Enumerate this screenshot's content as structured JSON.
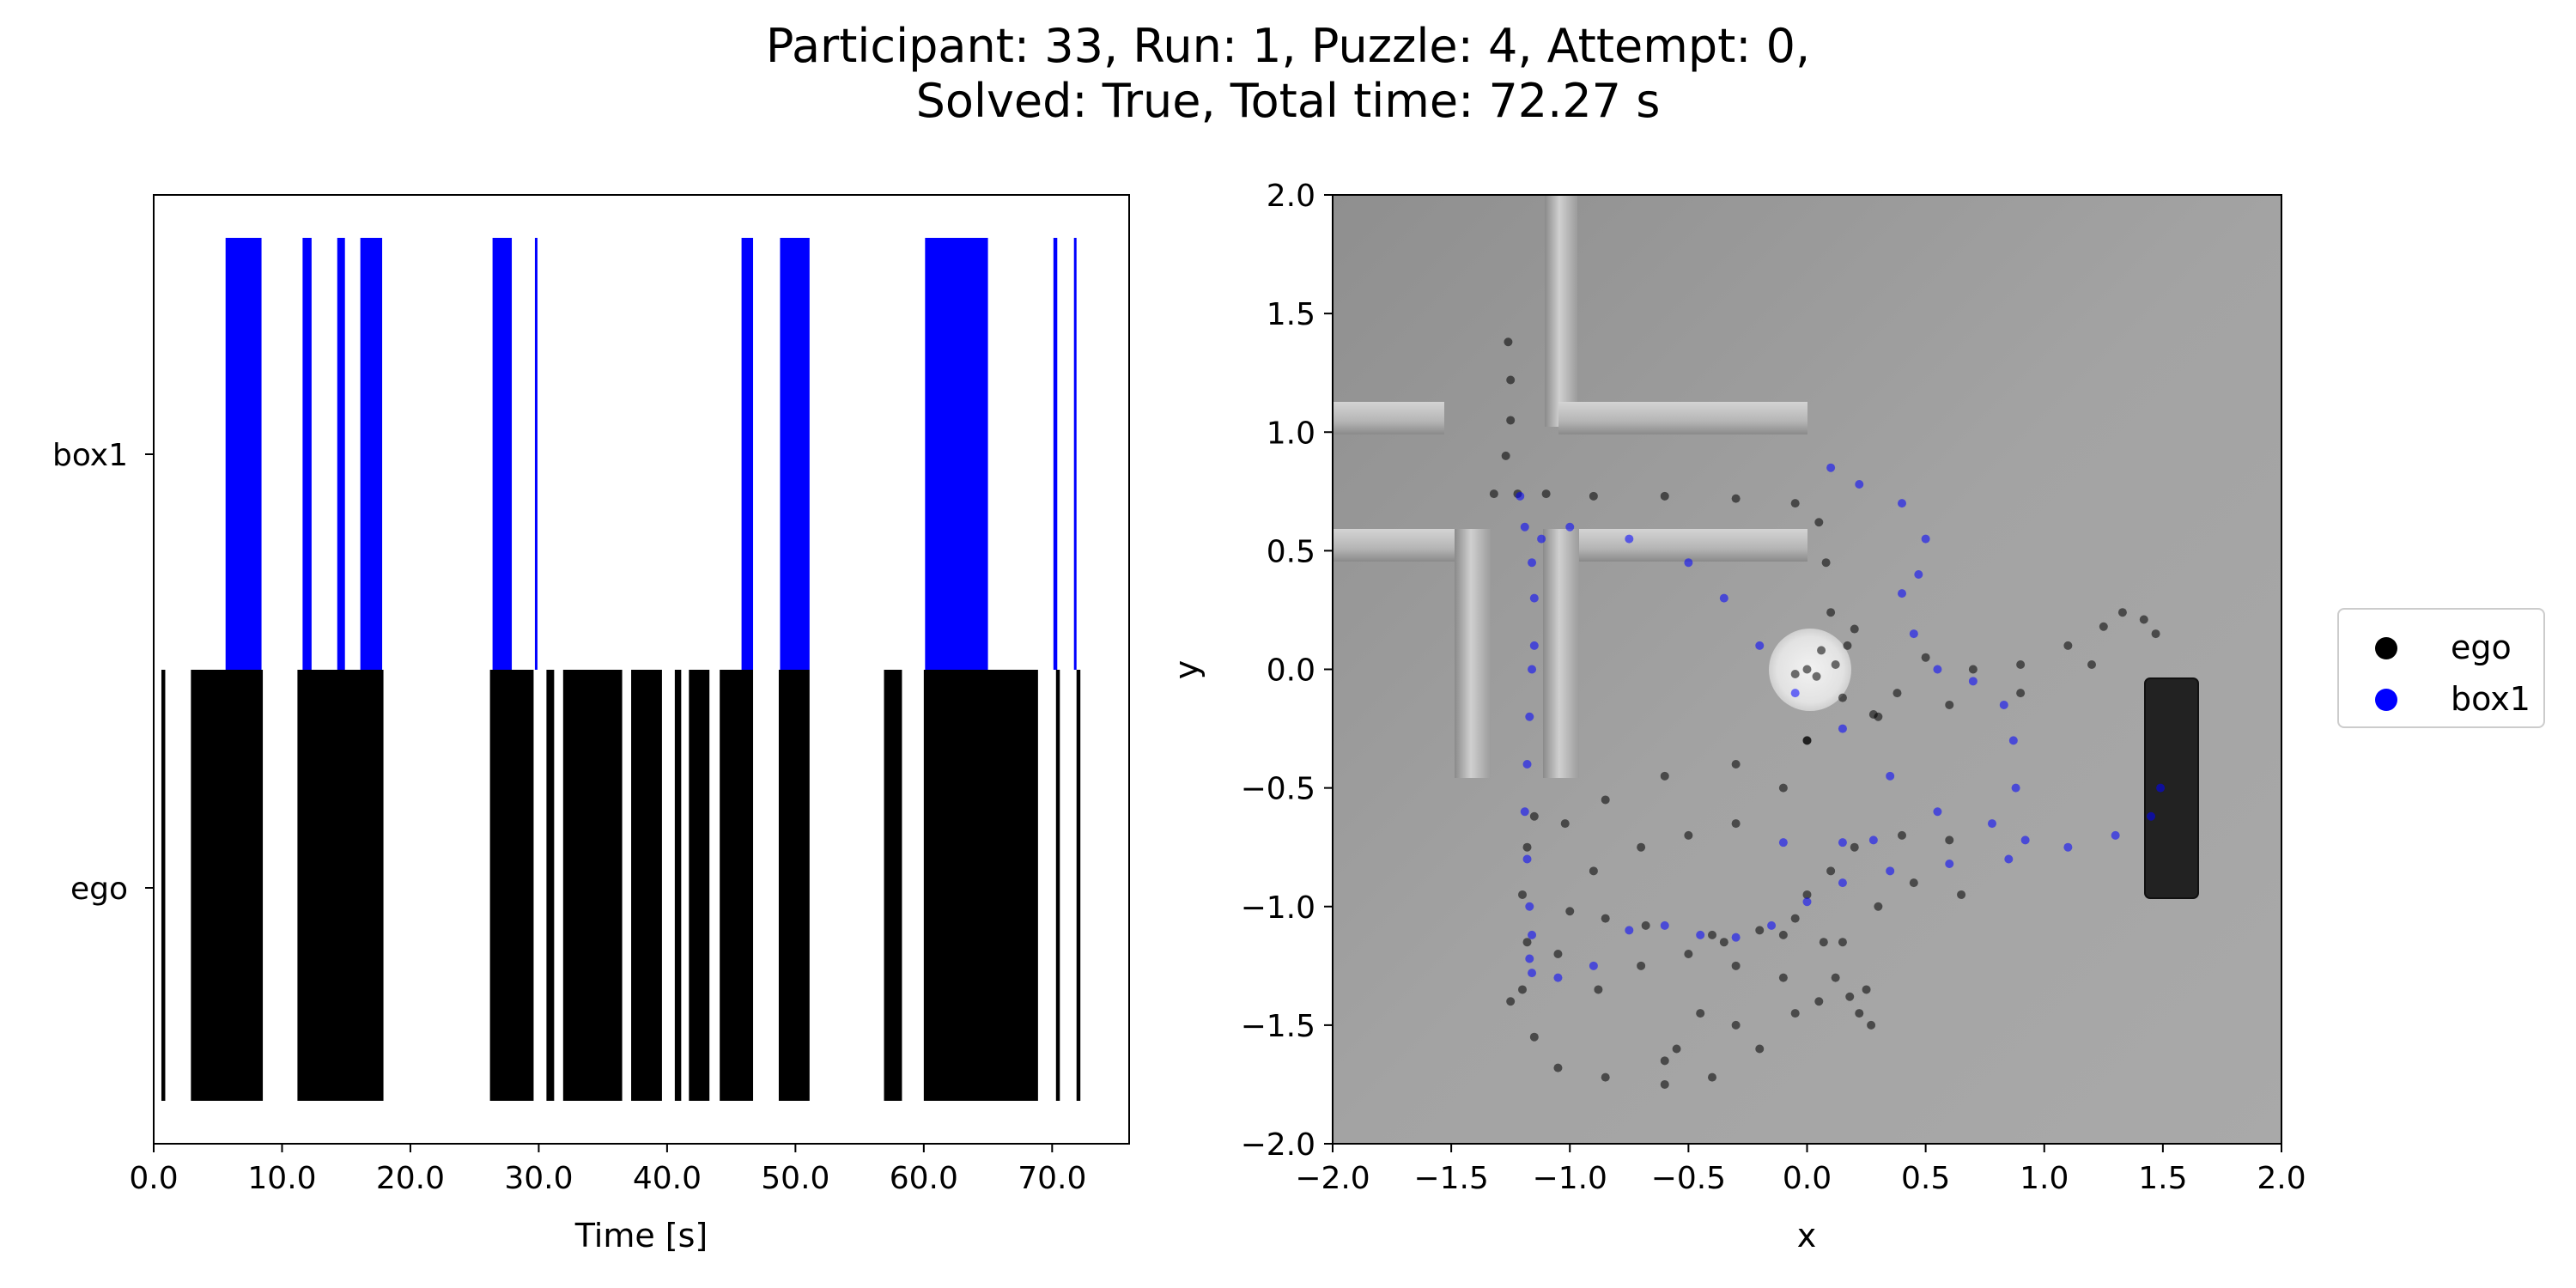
{
  "title_line1": "Participant: 33, Run: 1, Puzzle: 4, Attempt: 0,",
  "title_line2": "Solved: True, Total time: 72.27 s",
  "colors": {
    "ego": "#000000",
    "box1": "#0000ff",
    "background_gray": "#a6a6a6"
  },
  "chart_data": [
    {
      "type": "bar",
      "subtype": "timeline",
      "xlabel": "Time [s]",
      "ylabel": "",
      "xlim": [
        0,
        76
      ],
      "xticks": [
        "0.0",
        "10.0",
        "20.0",
        "30.0",
        "40.0",
        "50.0",
        "60.0",
        "70.0"
      ],
      "xtick_values": [
        0,
        10,
        20,
        30,
        40,
        50,
        60,
        70
      ],
      "categories": [
        "ego",
        "box1"
      ],
      "series": [
        {
          "name": "ego",
          "color": "#000000",
          "intervals": [
            [
              0.6,
              0.9
            ],
            [
              2.9,
              8.5
            ],
            [
              11.2,
              17.9
            ],
            [
              26.2,
              29.6
            ],
            [
              30.6,
              31.2
            ],
            [
              31.9,
              36.5
            ],
            [
              37.2,
              39.6
            ],
            [
              40.6,
              41.1
            ],
            [
              41.7,
              43.3
            ],
            [
              44.1,
              46.7
            ],
            [
              48.7,
              51.1
            ],
            [
              56.9,
              58.3
            ],
            [
              60.0,
              68.9
            ],
            [
              70.3,
              70.6
            ],
            [
              71.9,
              72.2
            ]
          ]
        },
        {
          "name": "box1",
          "color": "#0000ff",
          "intervals": [
            [
              5.6,
              8.4
            ],
            [
              11.6,
              12.3
            ],
            [
              14.3,
              14.9
            ],
            [
              16.1,
              17.8
            ],
            [
              26.4,
              27.9
            ],
            [
              29.7,
              29.9
            ],
            [
              45.8,
              46.7
            ],
            [
              48.8,
              51.1
            ],
            [
              60.1,
              65.0
            ],
            [
              70.1,
              70.4
            ],
            [
              71.7,
              71.9
            ]
          ]
        }
      ]
    },
    {
      "type": "scatter",
      "xlabel": "x",
      "ylabel": "y",
      "xlim": [
        -2.0,
        2.0
      ],
      "ylim": [
        -2.0,
        2.0
      ],
      "xticks": [
        "−2.0",
        "−1.5",
        "−1.0",
        "−0.5",
        "0.0",
        "0.5",
        "1.0",
        "1.5",
        "2.0"
      ],
      "yticks": [
        "2.0",
        "1.5",
        "1.0",
        "0.5",
        "0.0",
        "−0.5",
        "−1.0",
        "−1.5",
        "−2.0"
      ],
      "tick_values": [
        -2.0,
        -1.5,
        -1.0,
        -0.5,
        0.0,
        0.5,
        1.0,
        1.5,
        2.0
      ],
      "legend": {
        "position": "right",
        "entries": [
          "ego",
          "box1"
        ]
      },
      "series": [
        {
          "name": "ego",
          "color": "#000000",
          "points": [
            [
              -1.26,
              1.38
            ],
            [
              -1.25,
              1.22
            ],
            [
              -1.25,
              1.05
            ],
            [
              -1.27,
              0.9
            ],
            [
              -1.32,
              0.74
            ],
            [
              -1.22,
              0.74
            ],
            [
              -1.1,
              0.74
            ],
            [
              -0.9,
              0.73
            ],
            [
              -0.6,
              0.73
            ],
            [
              -0.3,
              0.72
            ],
            [
              -0.05,
              0.7
            ],
            [
              0.05,
              0.62
            ],
            [
              0.08,
              0.45
            ],
            [
              0.1,
              0.24
            ],
            [
              0.06,
              0.08
            ],
            [
              0.0,
              0.0
            ],
            [
              -0.05,
              -0.02
            ],
            [
              0.04,
              -0.03
            ],
            [
              0.12,
              0.02
            ],
            [
              0.17,
              0.1
            ],
            [
              0.2,
              0.17
            ],
            [
              0.15,
              -0.12
            ],
            [
              0.28,
              -0.19
            ],
            [
              0.38,
              -0.1
            ],
            [
              0.5,
              0.05
            ],
            [
              0.7,
              0.0
            ],
            [
              0.9,
              0.02
            ],
            [
              1.1,
              0.1
            ],
            [
              1.25,
              0.18
            ],
            [
              1.33,
              0.24
            ],
            [
              1.42,
              0.21
            ],
            [
              1.47,
              0.15
            ],
            [
              1.2,
              0.02
            ],
            [
              0.9,
              -0.1
            ],
            [
              0.6,
              -0.15
            ],
            [
              0.3,
              -0.2
            ],
            [
              0.0,
              -0.3
            ],
            [
              -0.3,
              -0.4
            ],
            [
              -0.6,
              -0.45
            ],
            [
              -0.85,
              -0.55
            ],
            [
              -1.02,
              -0.65
            ],
            [
              -1.15,
              -0.62
            ],
            [
              -1.18,
              -0.75
            ],
            [
              -1.2,
              -0.95
            ],
            [
              -1.18,
              -1.15
            ],
            [
              -1.2,
              -1.35
            ],
            [
              -1.25,
              -1.4
            ],
            [
              -1.15,
              -1.55
            ],
            [
              -1.05,
              -1.68
            ],
            [
              -0.85,
              -1.72
            ],
            [
              -0.6,
              -1.75
            ],
            [
              -0.4,
              -1.72
            ],
            [
              -0.2,
              -1.6
            ],
            [
              -0.05,
              -1.45
            ],
            [
              0.05,
              -1.4
            ],
            [
              -0.1,
              -1.3
            ],
            [
              -0.3,
              -1.25
            ],
            [
              -0.5,
              -1.2
            ],
            [
              -0.7,
              -1.25
            ],
            [
              -0.88,
              -1.35
            ],
            [
              -1.05,
              -1.2
            ],
            [
              -0.6,
              -1.65
            ],
            [
              -0.45,
              -1.45
            ],
            [
              -0.35,
              -1.15
            ],
            [
              -0.2,
              -1.1
            ],
            [
              -0.05,
              -1.05
            ],
            [
              0.0,
              -0.95
            ],
            [
              0.1,
              -0.85
            ],
            [
              0.2,
              -0.75
            ],
            [
              0.4,
              -0.7
            ],
            [
              0.6,
              -0.72
            ],
            [
              0.65,
              -0.95
            ],
            [
              0.45,
              -0.9
            ],
            [
              0.3,
              -1.0
            ],
            [
              0.15,
              -1.15
            ],
            [
              -0.1,
              -1.12
            ],
            [
              -0.4,
              -1.12
            ],
            [
              -0.68,
              -1.08
            ],
            [
              -0.85,
              -1.05
            ],
            [
              -1.0,
              -1.02
            ],
            [
              -0.9,
              -0.85
            ],
            [
              -0.7,
              -0.75
            ],
            [
              -0.5,
              -0.7
            ],
            [
              -0.3,
              -0.65
            ],
            [
              -0.1,
              -0.5
            ],
            [
              0.0,
              -0.3
            ],
            [
              0.07,
              -1.15
            ],
            [
              0.12,
              -1.3
            ],
            [
              0.18,
              -1.38
            ],
            [
              0.22,
              -1.45
            ],
            [
              0.27,
              -1.5
            ],
            [
              0.25,
              -1.35
            ],
            [
              -0.3,
              -1.5
            ],
            [
              -0.55,
              -1.6
            ]
          ]
        },
        {
          "name": "box1",
          "color": "#0000ff",
          "points": [
            [
              -1.21,
              0.73
            ],
            [
              -1.19,
              0.6
            ],
            [
              -1.16,
              0.45
            ],
            [
              -1.15,
              0.3
            ],
            [
              -1.15,
              0.1
            ],
            [
              -1.16,
              0.0
            ],
            [
              -1.17,
              -0.2
            ],
            [
              -1.18,
              -0.4
            ],
            [
              -1.19,
              -0.6
            ],
            [
              -1.18,
              -0.8
            ],
            [
              -1.17,
              -1.0
            ],
            [
              -1.16,
              -1.12
            ],
            [
              -1.17,
              -1.22
            ],
            [
              -1.16,
              -1.28
            ],
            [
              -1.05,
              -1.3
            ],
            [
              -0.9,
              -1.25
            ],
            [
              -0.75,
              -1.1
            ],
            [
              -0.6,
              -1.08
            ],
            [
              -0.45,
              -1.12
            ],
            [
              -0.3,
              -1.13
            ],
            [
              -0.15,
              -1.08
            ],
            [
              0.0,
              -0.98
            ],
            [
              0.15,
              -0.9
            ],
            [
              0.35,
              -0.85
            ],
            [
              0.6,
              -0.82
            ],
            [
              0.85,
              -0.8
            ],
            [
              1.1,
              -0.75
            ],
            [
              1.3,
              -0.7
            ],
            [
              1.45,
              -0.62
            ],
            [
              1.49,
              -0.5
            ],
            [
              -0.1,
              -0.73
            ],
            [
              0.15,
              -0.73
            ],
            [
              0.28,
              -0.72
            ],
            [
              0.92,
              -0.72
            ],
            [
              0.1,
              0.85
            ],
            [
              0.22,
              0.78
            ],
            [
              0.4,
              0.7
            ],
            [
              0.5,
              0.55
            ],
            [
              0.47,
              0.4
            ],
            [
              0.4,
              0.32
            ],
            [
              0.45,
              0.15
            ],
            [
              0.55,
              0.0
            ],
            [
              0.7,
              -0.05
            ],
            [
              0.83,
              -0.15
            ],
            [
              0.87,
              -0.3
            ],
            [
              0.88,
              -0.5
            ],
            [
              0.78,
              -0.65
            ],
            [
              0.55,
              -0.6
            ],
            [
              0.35,
              -0.45
            ],
            [
              0.15,
              -0.25
            ],
            [
              -0.05,
              -0.1
            ],
            [
              -0.2,
              0.1
            ],
            [
              -0.35,
              0.3
            ],
            [
              -0.5,
              0.45
            ],
            [
              -0.75,
              0.55
            ],
            [
              -1.0,
              0.6
            ],
            [
              -1.12,
              0.55
            ]
          ]
        }
      ]
    }
  ]
}
